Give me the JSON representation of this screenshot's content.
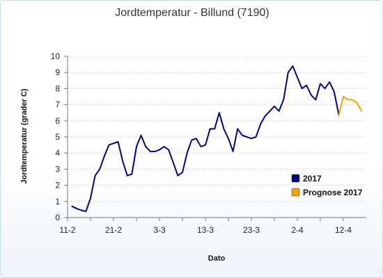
{
  "chart_data": {
    "type": "line",
    "title": "Jordtemperatur - Billund (7190)",
    "xlabel": "Dato",
    "ylabel": "Jordtemperatur (grader C)",
    "ylim": [
      0,
      10
    ],
    "yticks": [
      "0",
      "1",
      "2",
      "3",
      "4",
      "5",
      "6",
      "7",
      "8",
      "9",
      "10"
    ],
    "xlim": [
      0,
      65
    ],
    "xticks": [
      {
        "label": "11-2",
        "x": 0
      },
      {
        "label": "21-2",
        "x": 10
      },
      {
        "label": "3-3",
        "x": 20
      },
      {
        "label": "13-3",
        "x": 30
      },
      {
        "label": "23-3",
        "x": 40
      },
      {
        "label": "2-4",
        "x": 50
      },
      {
        "label": "12-4",
        "x": 60
      }
    ],
    "grid": true,
    "legend_position": "bottom-right",
    "series": [
      {
        "name": "2017",
        "color": "#000080",
        "points": [
          [
            1,
            0.7
          ],
          [
            2,
            0.55
          ],
          [
            3,
            0.45
          ],
          [
            4,
            0.38
          ],
          [
            5,
            1.2
          ],
          [
            6,
            2.6
          ],
          [
            7,
            3.0
          ],
          [
            8,
            3.8
          ],
          [
            9,
            4.5
          ],
          [
            10,
            4.6
          ],
          [
            11,
            4.7
          ],
          [
            12,
            3.5
          ],
          [
            13,
            2.6
          ],
          [
            14,
            2.7
          ],
          [
            15,
            4.4
          ],
          [
            16,
            5.1
          ],
          [
            17,
            4.4
          ],
          [
            18,
            4.1
          ],
          [
            19,
            4.1
          ],
          [
            20,
            4.2
          ],
          [
            21,
            4.4
          ],
          [
            22,
            4.2
          ],
          [
            23,
            3.4
          ],
          [
            24,
            2.6
          ],
          [
            25,
            2.8
          ],
          [
            26,
            4.0
          ],
          [
            27,
            4.8
          ],
          [
            28,
            4.9
          ],
          [
            29,
            4.4
          ],
          [
            30,
            4.5
          ],
          [
            31,
            5.5
          ],
          [
            32,
            5.5
          ],
          [
            33,
            6.5
          ],
          [
            34,
            5.5
          ],
          [
            35,
            4.9
          ],
          [
            36,
            4.1
          ],
          [
            37,
            5.5
          ],
          [
            38,
            5.1
          ],
          [
            39,
            5.0
          ],
          [
            40,
            4.9
          ],
          [
            41,
            5.0
          ],
          [
            42,
            5.8
          ],
          [
            43,
            6.3
          ],
          [
            44,
            6.6
          ],
          [
            45,
            6.9
          ],
          [
            46,
            6.6
          ],
          [
            47,
            7.3
          ],
          [
            48,
            9.0
          ],
          [
            49,
            9.4
          ],
          [
            50,
            8.7
          ],
          [
            51,
            8.0
          ],
          [
            52,
            8.2
          ],
          [
            53,
            7.6
          ],
          [
            54,
            7.3
          ],
          [
            55,
            8.3
          ],
          [
            56,
            8.0
          ],
          [
            57,
            8.4
          ],
          [
            58,
            7.8
          ],
          [
            59,
            6.4
          ]
        ]
      },
      {
        "name": "Prognose 2017",
        "color": "#f5a200",
        "points": [
          [
            59,
            6.3
          ],
          [
            60,
            7.5
          ],
          [
            61,
            7.3
          ],
          [
            62,
            7.3
          ],
          [
            63,
            7.1
          ],
          [
            64,
            6.6
          ]
        ]
      }
    ]
  }
}
